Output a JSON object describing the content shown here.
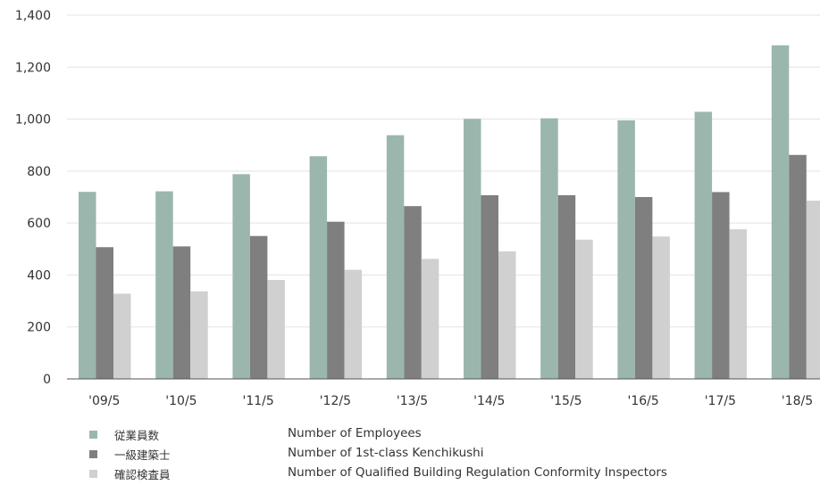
{
  "chart_data": {
    "type": "bar",
    "title": "",
    "xlabel": "",
    "ylabel": "",
    "ylim": [
      0,
      1400
    ],
    "y_ticks": [
      0,
      200,
      400,
      600,
      800,
      1000,
      1200,
      1400
    ],
    "y_tick_labels": [
      "0",
      "200",
      "400",
      "600",
      "800",
      "1,000",
      "1,200",
      "1,400"
    ],
    "categories": [
      "'09/5",
      "'10/5",
      "'11/5",
      "'12/5",
      "'13/5",
      "'14/5",
      "'15/5",
      "'16/5",
      "'17/5",
      "'18/5"
    ],
    "grid": true,
    "legend_position": "bottom-left",
    "series": [
      {
        "name": "従業員数",
        "name_en": "Number of Employees",
        "color": "#9bb7ad",
        "values": [
          720,
          722,
          788,
          857,
          938,
          1001,
          1003,
          995,
          1028,
          1284
        ]
      },
      {
        "name": "一級建築士",
        "name_en": "Number of 1st-class Kenchikushi",
        "color": "#7f7f7f",
        "values": [
          507,
          510,
          550,
          605,
          665,
          707,
          707,
          700,
          719,
          862
        ]
      },
      {
        "name": "確認検査員",
        "name_en": "Number of Qualified Building Regulation Conformity Inspectors",
        "color": "#d0d0d0",
        "values": [
          328,
          337,
          381,
          420,
          462,
          491,
          536,
          548,
          576,
          686
        ]
      }
    ]
  }
}
